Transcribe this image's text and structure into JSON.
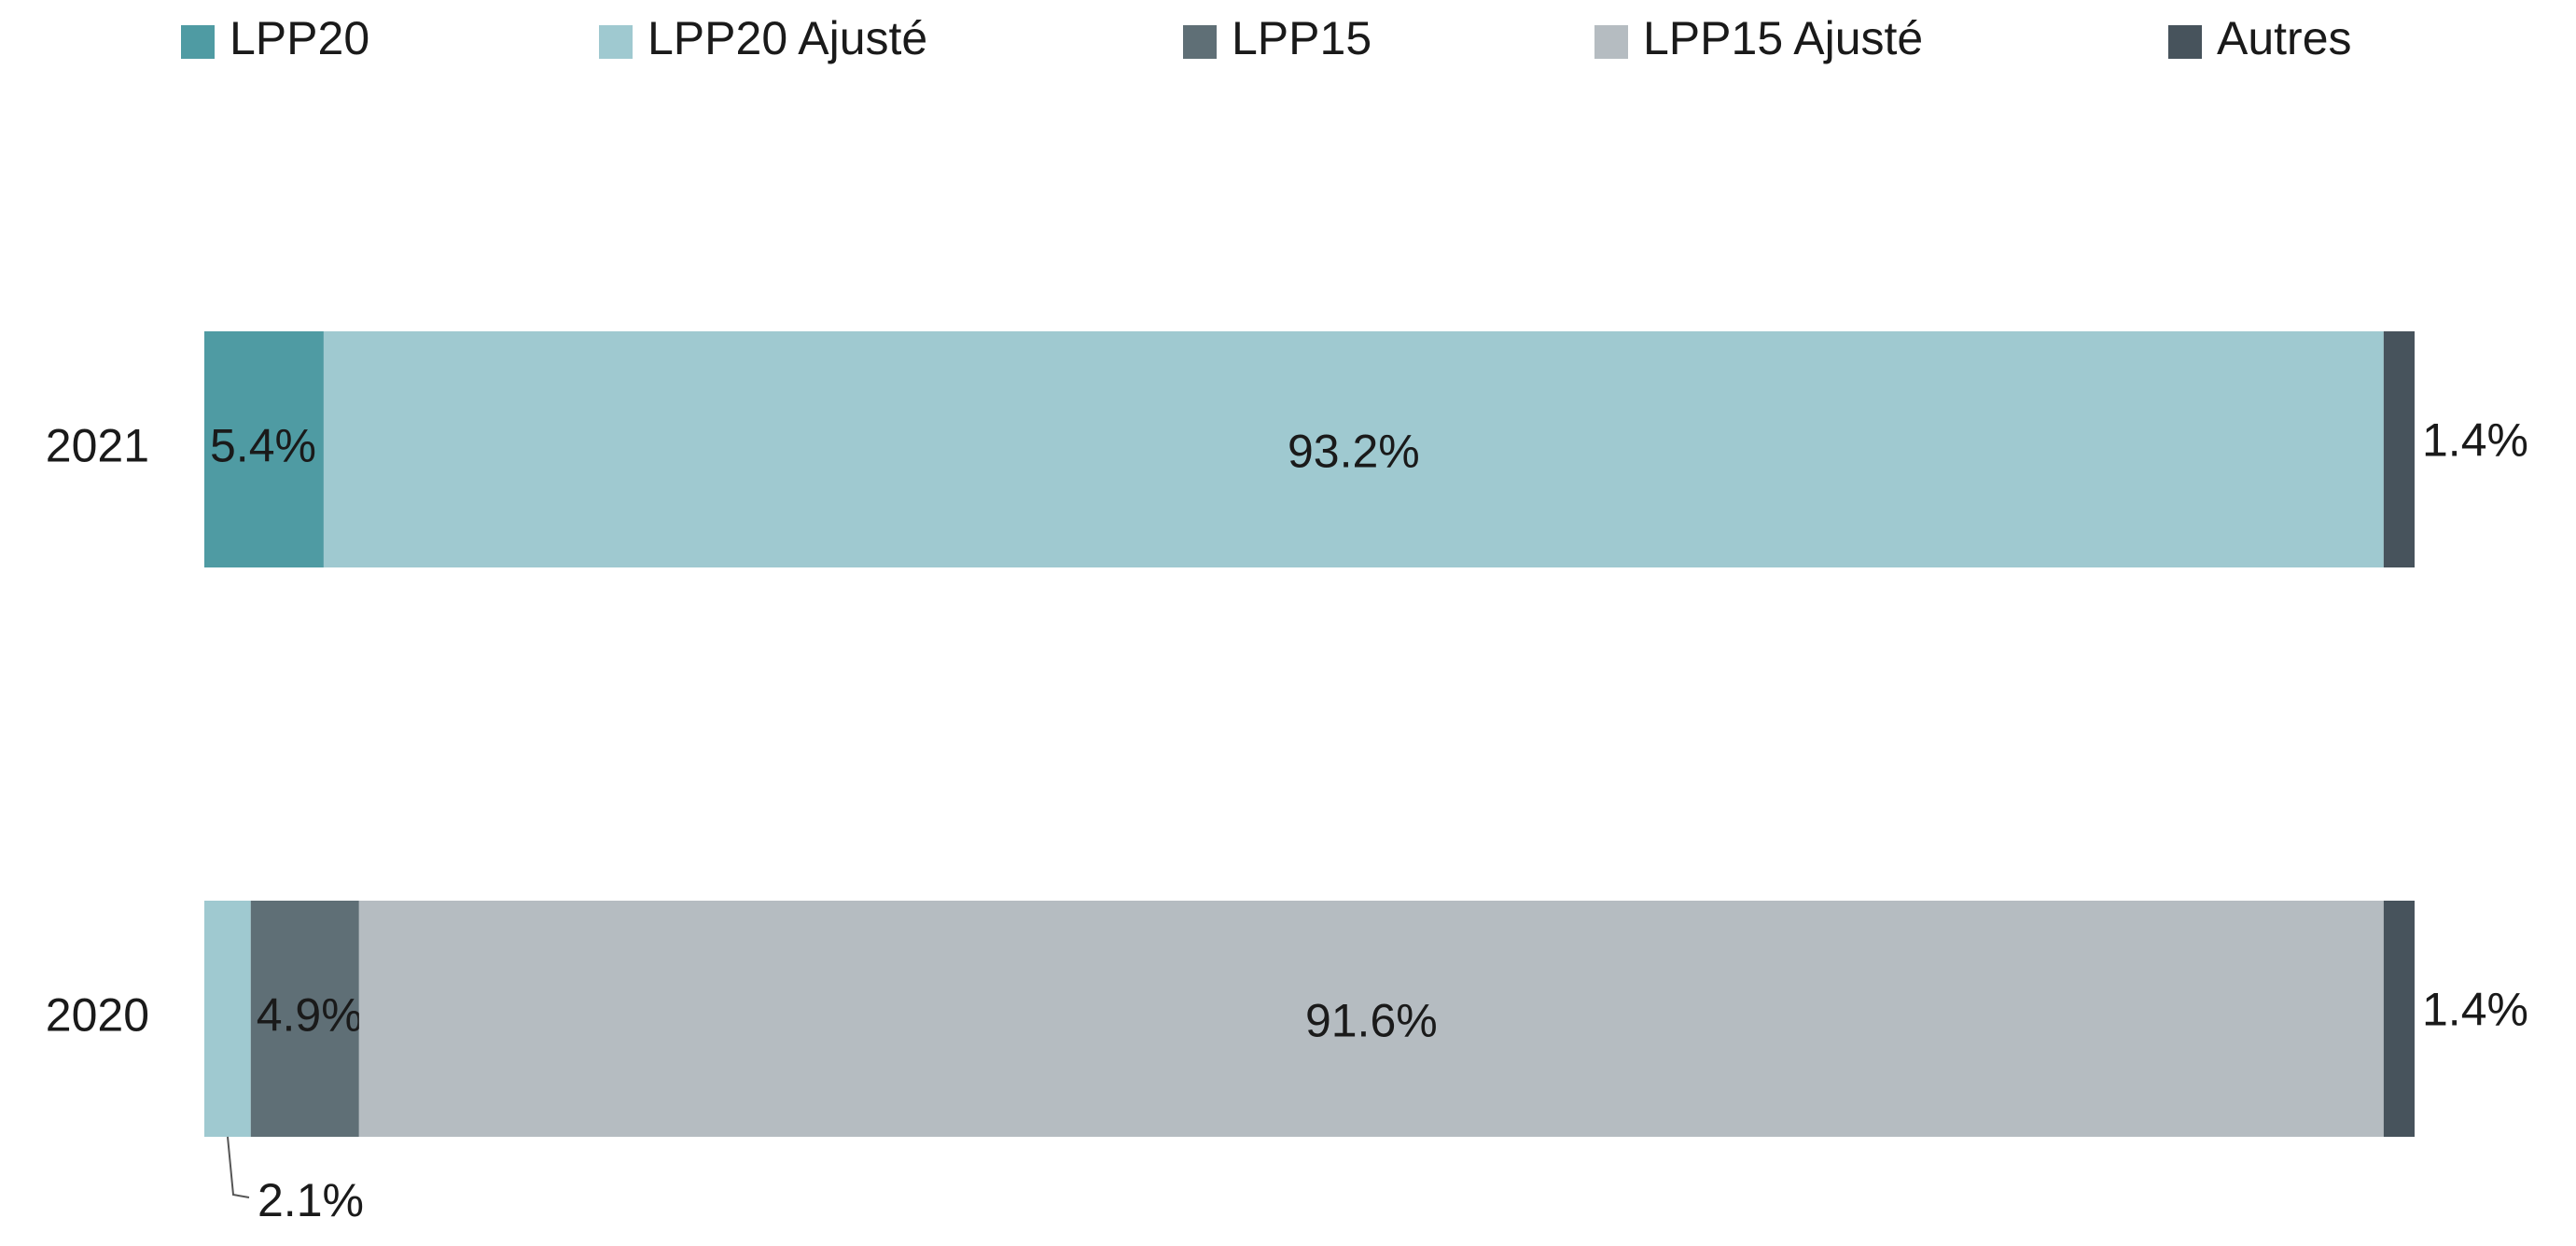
{
  "chart_data": {
    "type": "stacked-bar-horizontal",
    "categories": [
      "2021",
      "2020"
    ],
    "series": [
      {
        "name": "LPP20",
        "color": "#4f9ba3",
        "values": [
          5.4,
          null
        ],
        "value_labels": [
          "5.4%",
          null
        ]
      },
      {
        "name": "LPP20 Ajusté",
        "color": "#9fc9d0",
        "values": [
          93.2,
          2.1
        ],
        "value_labels": [
          "93.2%",
          "2.1%"
        ]
      },
      {
        "name": "LPP15",
        "color": "#5f6f76",
        "values": [
          null,
          4.9
        ],
        "value_labels": [
          null,
          "4.9%"
        ]
      },
      {
        "name": "LPP15 Ajusté",
        "color": "#b5bcc1",
        "values": [
          null,
          91.6
        ],
        "value_labels": [
          null,
          "91.6%"
        ]
      },
      {
        "name": "Autres",
        "color": "#47535c",
        "values": [
          1.4,
          1.4
        ],
        "value_labels": [
          "1.4%",
          "1.4%"
        ]
      }
    ],
    "xlim": [
      0,
      100
    ],
    "legend": "top"
  }
}
